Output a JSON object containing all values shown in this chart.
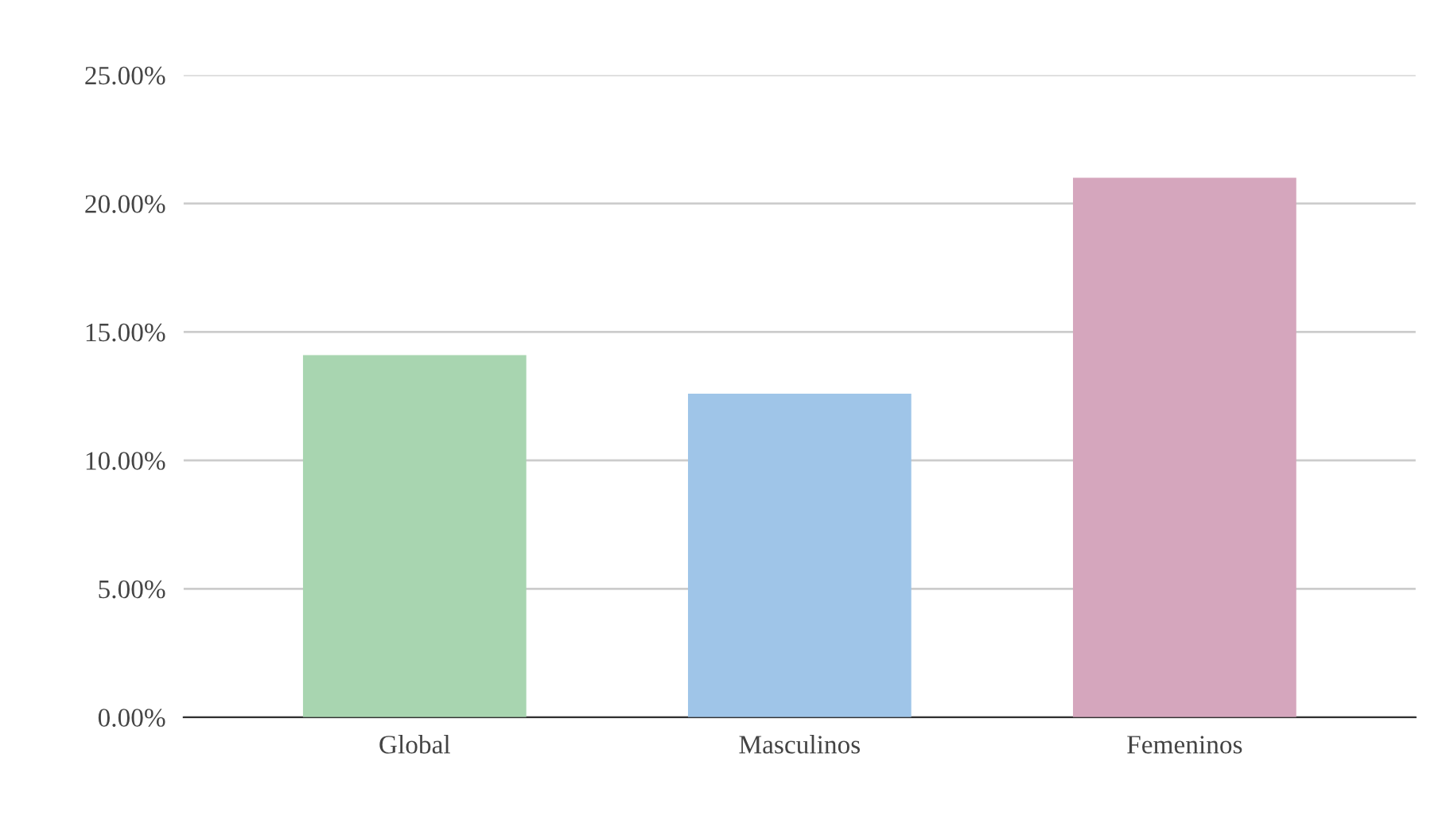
{
  "chart_data": {
    "type": "bar",
    "categories": [
      "Global",
      "Masculinos",
      "Femeninos"
    ],
    "values": [
      14.1,
      12.6,
      21.0
    ],
    "colors": [
      "#a8d5b0",
      "#9fc5e8",
      "#d5a6bd"
    ],
    "ylim": [
      0,
      25
    ],
    "yticks": [
      {
        "value": 0,
        "label": "0.00%"
      },
      {
        "value": 5,
        "label": "5.00%"
      },
      {
        "value": 10,
        "label": "10.00%"
      },
      {
        "value": 15,
        "label": "15.00%"
      },
      {
        "value": 20,
        "label": "20.00%"
      },
      {
        "value": 25,
        "label": "25.00%"
      }
    ],
    "grid": "y"
  }
}
